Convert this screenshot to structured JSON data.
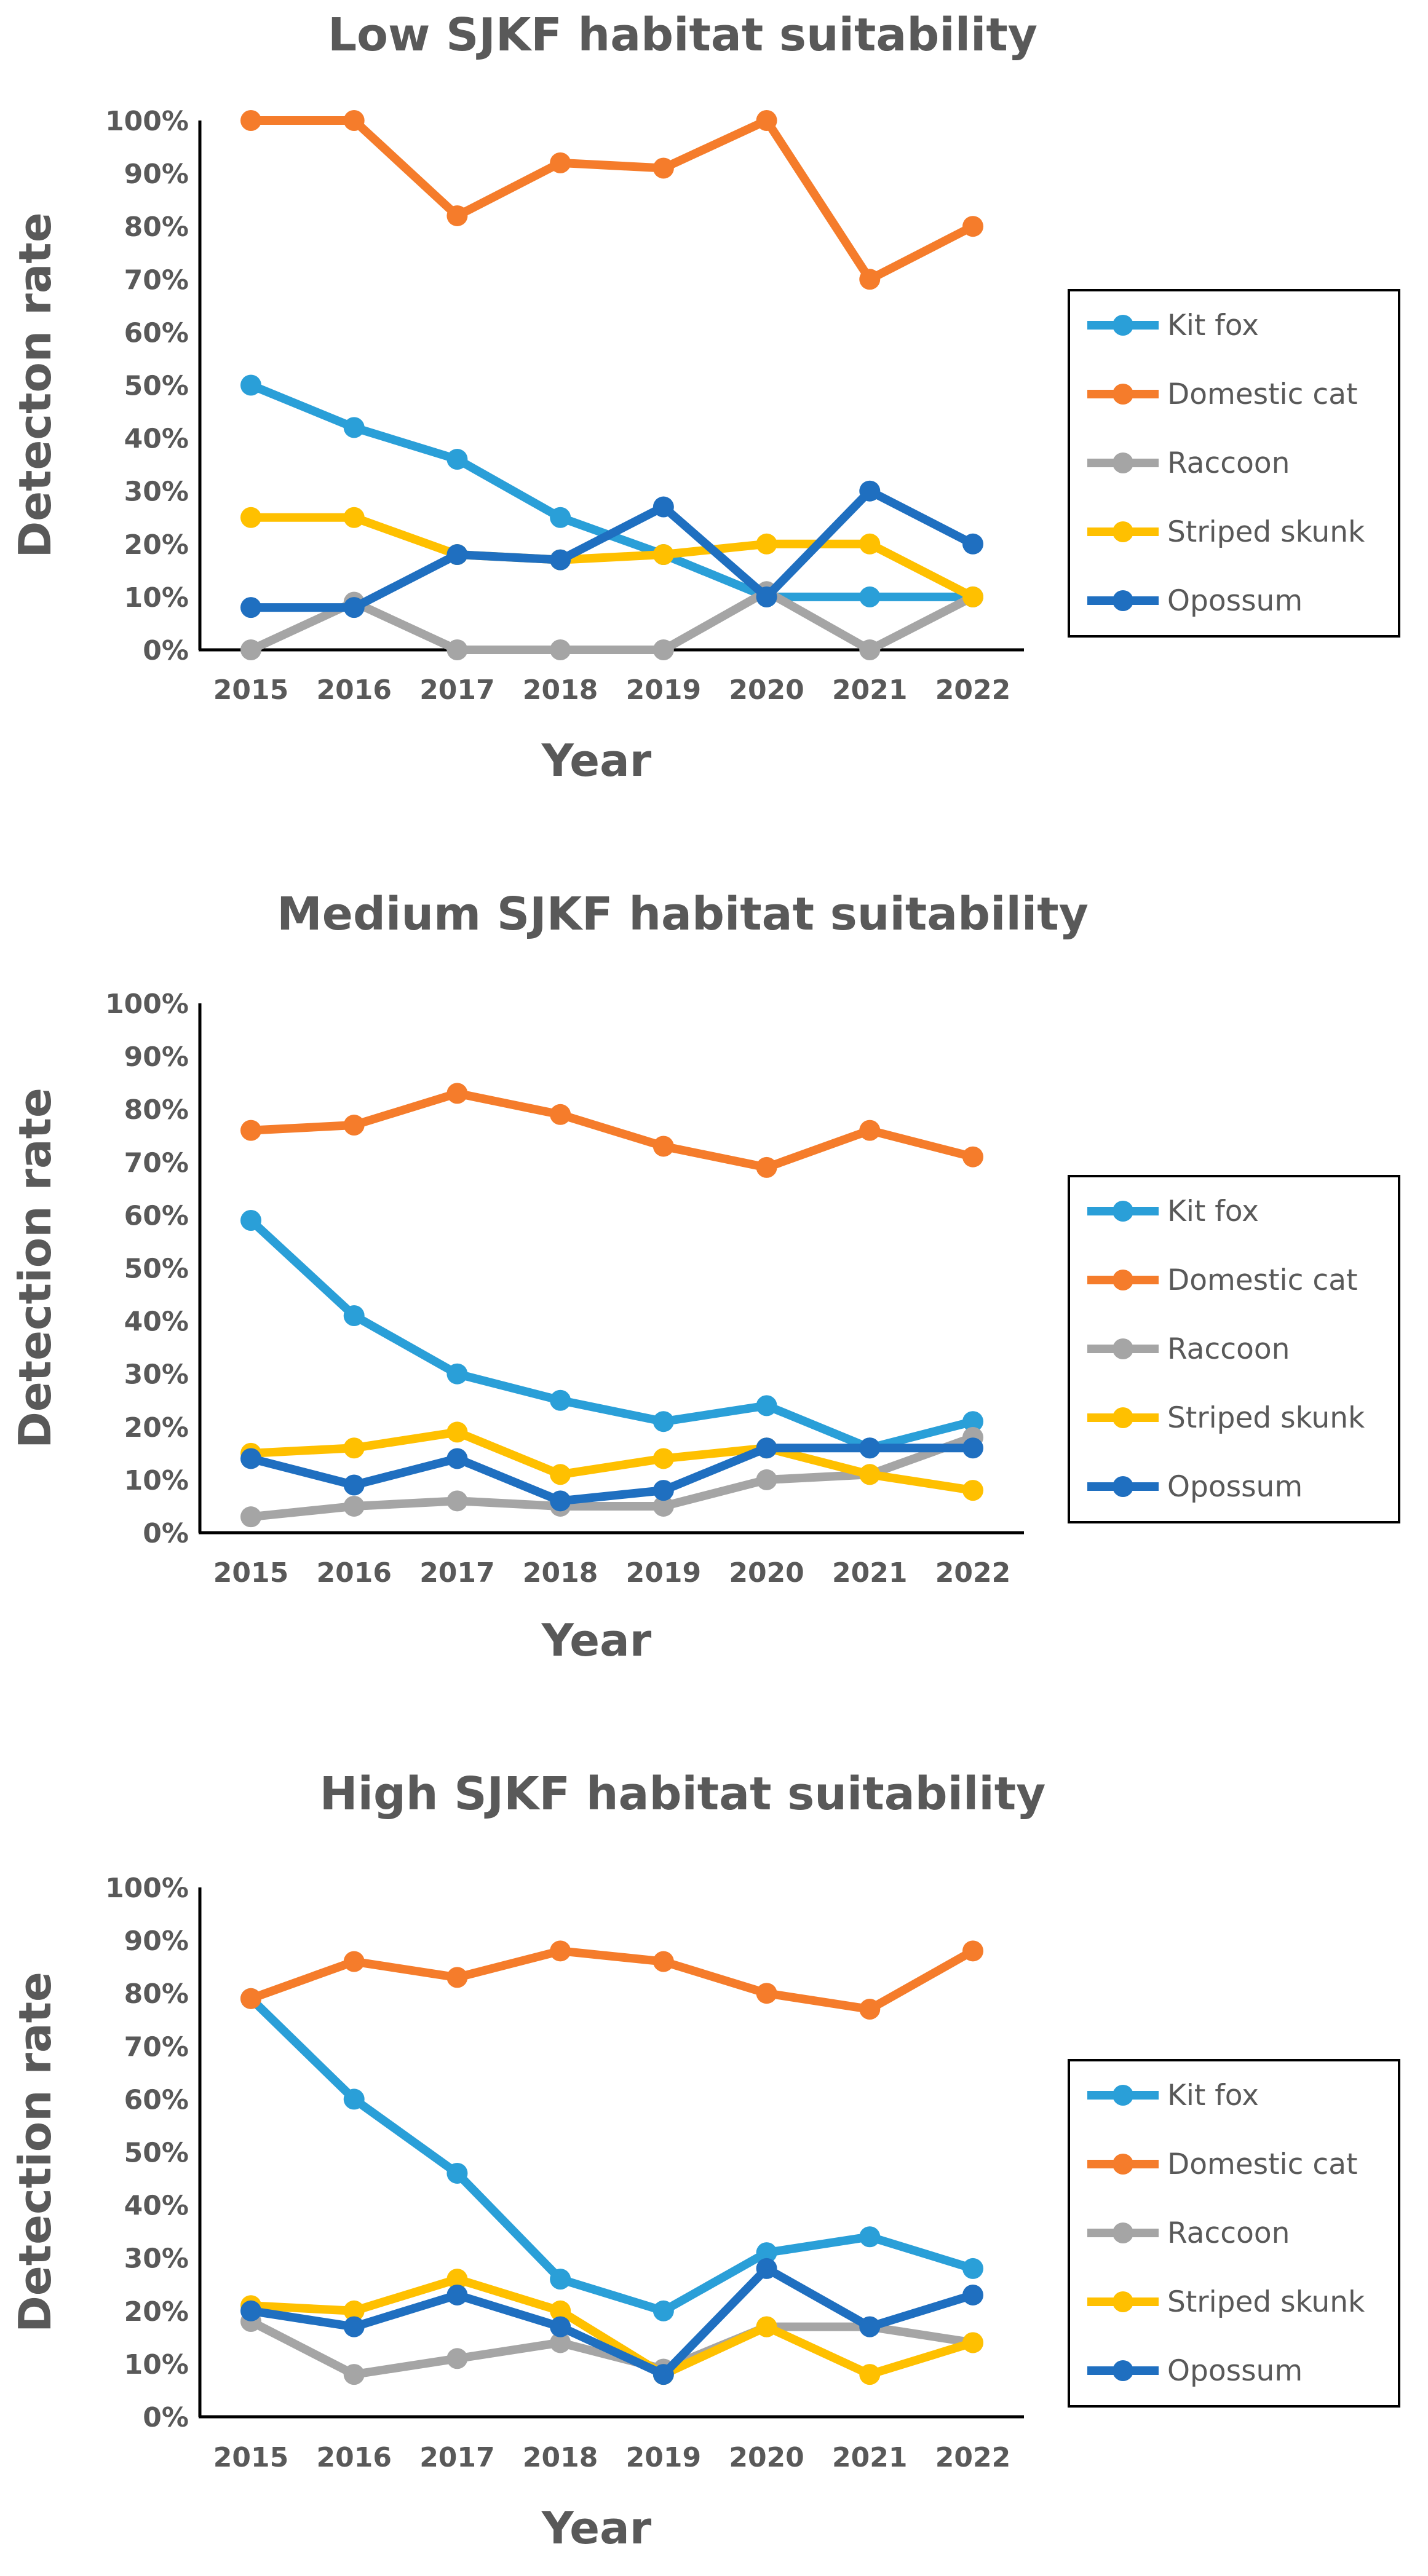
{
  "chart_data": [
    {
      "type": "line",
      "title": "Low SJKF habitat suitability",
      "xlabel": "Year",
      "ylabel": "Detecton rate",
      "ylim": [
        0,
        100
      ],
      "yticks": [
        "0%",
        "10%",
        "20%",
        "30%",
        "40%",
        "50%",
        "60%",
        "70%",
        "80%",
        "90%",
        "100%"
      ],
      "categories": [
        "2015",
        "2016",
        "2017",
        "2018",
        "2019",
        "2020",
        "2021",
        "2022"
      ],
      "legend_position": "right",
      "series": [
        {
          "name": "Kit fox",
          "color": "#2A9FD8",
          "values": [
            50,
            42,
            36,
            25,
            18,
            10,
            10,
            10
          ]
        },
        {
          "name": "Domestic cat",
          "color": "#F57C2B",
          "values": [
            100,
            100,
            82,
            92,
            91,
            100,
            70,
            80
          ]
        },
        {
          "name": "Raccoon",
          "color": "#A5A5A5",
          "values": [
            0,
            9,
            0,
            0,
            0,
            11,
            0,
            10
          ]
        },
        {
          "name": "Striped skunk",
          "color": "#FFC000",
          "values": [
            25,
            25,
            18,
            17,
            18,
            20,
            20,
            10
          ]
        },
        {
          "name": "Opossum",
          "color": "#1F6FC0",
          "values": [
            8,
            8,
            18,
            17,
            27,
            10,
            30,
            20
          ]
        }
      ]
    },
    {
      "type": "line",
      "title": "Medium SJKF habitat suitability",
      "xlabel": "Year",
      "ylabel": "Detection rate",
      "ylim": [
        0,
        100
      ],
      "yticks": [
        "0%",
        "10%",
        "20%",
        "30%",
        "40%",
        "50%",
        "60%",
        "70%",
        "80%",
        "90%",
        "100%"
      ],
      "categories": [
        "2015",
        "2016",
        "2017",
        "2018",
        "2019",
        "2020",
        "2021",
        "2022"
      ],
      "legend_position": "right",
      "series": [
        {
          "name": "Kit fox",
          "color": "#2A9FD8",
          "values": [
            59,
            41,
            30,
            25,
            21,
            24,
            16,
            21
          ]
        },
        {
          "name": "Domestic cat",
          "color": "#F57C2B",
          "values": [
            76,
            77,
            83,
            79,
            73,
            69,
            76,
            71
          ]
        },
        {
          "name": "Raccoon",
          "color": "#A5A5A5",
          "values": [
            3,
            5,
            6,
            5,
            5,
            10,
            11,
            18
          ]
        },
        {
          "name": "Striped skunk",
          "color": "#FFC000",
          "values": [
            15,
            16,
            19,
            11,
            14,
            16,
            11,
            8
          ]
        },
        {
          "name": "Opossum",
          "color": "#1F6FC0",
          "values": [
            14,
            9,
            14,
            6,
            8,
            16,
            16,
            16
          ]
        }
      ]
    },
    {
      "type": "line",
      "title": "High SJKF habitat suitability",
      "xlabel": "Year",
      "ylabel": "Detection rate",
      "ylim": [
        0,
        100
      ],
      "yticks": [
        "0%",
        "10%",
        "20%",
        "30%",
        "40%",
        "50%",
        "60%",
        "70%",
        "80%",
        "90%",
        "100%"
      ],
      "categories": [
        "2015",
        "2016",
        "2017",
        "2018",
        "2019",
        "2020",
        "2021",
        "2022"
      ],
      "legend_position": "right",
      "series": [
        {
          "name": "Kit fox",
          "color": "#2A9FD8",
          "values": [
            79,
            60,
            46,
            26,
            20,
            31,
            34,
            28
          ]
        },
        {
          "name": "Domestic cat",
          "color": "#F57C2B",
          "values": [
            79,
            86,
            83,
            88,
            86,
            80,
            77,
            88
          ]
        },
        {
          "name": "Raccoon",
          "color": "#A5A5A5",
          "values": [
            18,
            8,
            11,
            14,
            9,
            17,
            17,
            14
          ]
        },
        {
          "name": "Striped skunk",
          "color": "#FFC000",
          "values": [
            21,
            20,
            26,
            20,
            8,
            17,
            8,
            14
          ]
        },
        {
          "name": "Opossum",
          "color": "#1F6FC0",
          "values": [
            20,
            17,
            23,
            17,
            8,
            28,
            17,
            23
          ]
        }
      ]
    }
  ]
}
